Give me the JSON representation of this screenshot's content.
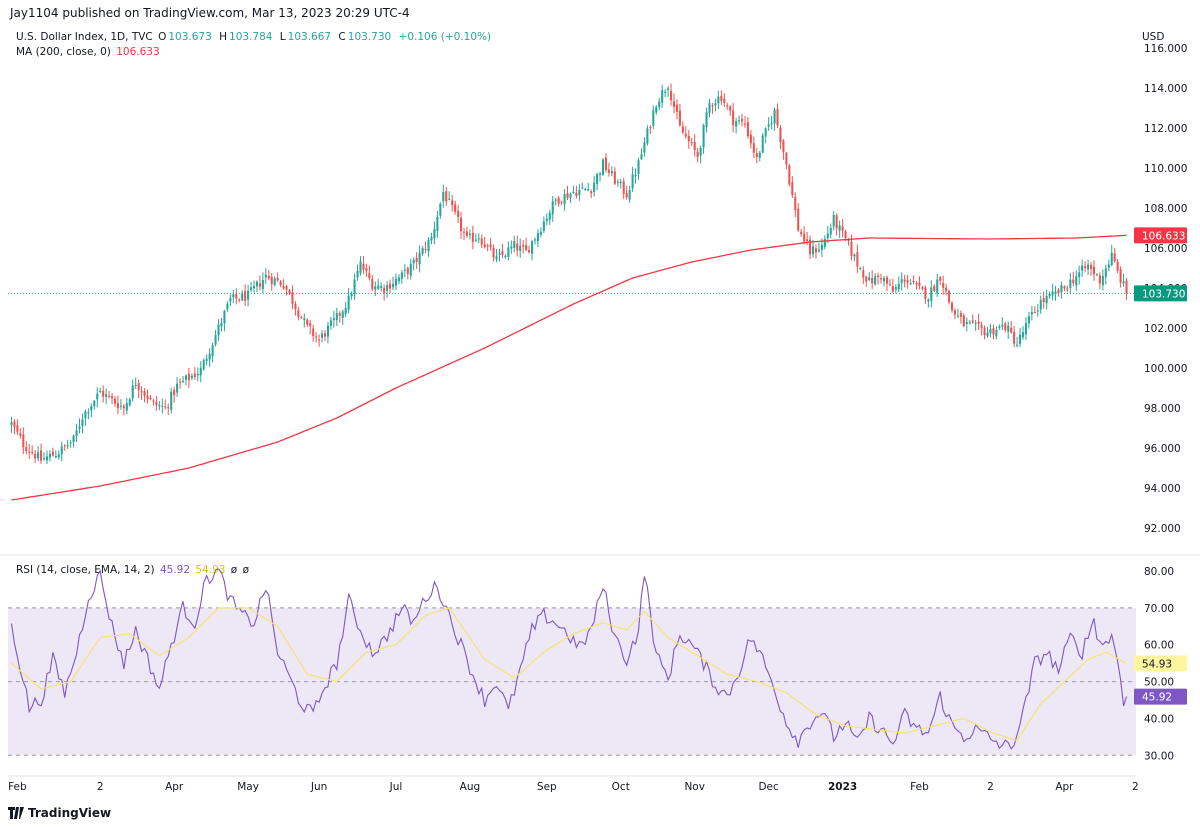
{
  "publisher": "Jay1104 published on TradingView.com, Mar 13, 2023 20:29 UTC-4",
  "legend": {
    "symbol": "U.S. Dollar Index, 1D, TVC",
    "o_label": "O",
    "o_value": "103.673",
    "h_label": "H",
    "h_value": "103.784",
    "l_label": "L",
    "l_value": "103.667",
    "c_label": "C",
    "c_value": "103.730",
    "change": "+0.106 (+0.10%)",
    "ma_label": "MA (200, close, 0)",
    "ma_value": "106.633",
    "rsi_label": "RSI (14, close, EMA, 14, 2)",
    "rsi_value": "45.92",
    "rsi_ma_value": "54.93",
    "rsi_extra1": "ø",
    "rsi_extra2": "ø"
  },
  "footer": {
    "brand": "TradingView"
  },
  "colors": {
    "up": "#26a69a",
    "down": "#ef5350",
    "ma": "#f23645",
    "rsi": "#7e57c2",
    "rsi_ma": "#f7e36a",
    "rsi_band": "#ede7f6"
  },
  "chart_data": [
    {
      "type": "candlestick",
      "title": "U.S. Dollar Index, 1D, TVC",
      "currency": "USD",
      "ylim": [
        91,
        116.6
      ],
      "y_ticks": [
        "116.000",
        "114.000",
        "112.000",
        "110.000",
        "108.000",
        "106.000",
        "104.000",
        "102.000",
        "100.000",
        "98.000",
        "96.000",
        "94.000",
        "92.000"
      ],
      "price_anchors": [
        [
          0,
          97.2
        ],
        [
          4,
          96.2
        ],
        [
          10,
          95.4
        ],
        [
          16,
          95.8
        ],
        [
          21,
          96.4
        ],
        [
          24,
          97.6
        ],
        [
          30,
          98.8
        ],
        [
          34,
          98.4
        ],
        [
          38,
          98.0
        ],
        [
          42,
          99.3
        ],
        [
          48,
          98.2
        ],
        [
          52,
          98.0
        ],
        [
          56,
          99.1
        ],
        [
          64,
          99.9
        ],
        [
          70,
          102.0
        ],
        [
          74,
          103.4
        ],
        [
          80,
          103.6
        ],
        [
          86,
          104.6
        ],
        [
          92,
          104.2
        ],
        [
          96,
          103.1
        ],
        [
          100,
          102.0
        ],
        [
          104,
          101.4
        ],
        [
          110,
          102.5
        ],
        [
          114,
          103.4
        ],
        [
          118,
          105.2
        ],
        [
          122,
          104.2
        ],
        [
          126,
          104.0
        ],
        [
          132,
          104.6
        ],
        [
          136,
          105.2
        ],
        [
          142,
          106.5
        ],
        [
          146,
          108.8
        ],
        [
          150,
          107.6
        ],
        [
          154,
          106.4
        ],
        [
          158,
          106.6
        ],
        [
          164,
          105.4
        ],
        [
          170,
          106.1
        ],
        [
          174,
          105.8
        ],
        [
          178,
          106.8
        ],
        [
          184,
          108.4
        ],
        [
          190,
          108.8
        ],
        [
          196,
          109.0
        ],
        [
          200,
          110.2
        ],
        [
          204,
          109.4
        ],
        [
          208,
          108.7
        ],
        [
          212,
          110.2
        ],
        [
          218,
          113.3
        ],
        [
          222,
          114.2
        ],
        [
          226,
          112.0
        ],
        [
          232,
          110.6
        ],
        [
          236,
          113.2
        ],
        [
          240,
          113.6
        ],
        [
          244,
          112.4
        ],
        [
          248,
          112.2
        ],
        [
          252,
          110.4
        ],
        [
          254,
          111.4
        ],
        [
          258,
          112.8
        ],
        [
          262,
          110.2
        ],
        [
          266,
          107.0
        ],
        [
          270,
          105.8
        ],
        [
          274,
          106.1
        ],
        [
          278,
          107.4
        ],
        [
          282,
          106.4
        ],
        [
          286,
          105.2
        ],
        [
          290,
          104.3
        ],
        [
          294,
          104.6
        ],
        [
          298,
          103.8
        ],
        [
          302,
          104.5
        ],
        [
          306,
          104.0
        ],
        [
          310,
          103.6
        ],
        [
          314,
          104.6
        ],
        [
          318,
          102.9
        ],
        [
          322,
          102.2
        ],
        [
          326,
          102.0
        ],
        [
          330,
          101.8
        ],
        [
          336,
          102.1
        ],
        [
          340,
          101.2
        ],
        [
          344,
          102.4
        ],
        [
          348,
          103.3
        ],
        [
          352,
          103.6
        ],
        [
          356,
          104.0
        ],
        [
          360,
          104.6
        ],
        [
          364,
          105.1
        ],
        [
          368,
          104.4
        ],
        [
          372,
          105.6
        ],
        [
          374,
          104.8
        ],
        [
          377,
          103.73
        ]
      ],
      "ma200_anchors": [
        [
          0,
          93.4
        ],
        [
          30,
          94.1
        ],
        [
          60,
          95.0
        ],
        [
          90,
          96.3
        ],
        [
          110,
          97.5
        ],
        [
          130,
          99.0
        ],
        [
          160,
          101.0
        ],
        [
          190,
          103.2
        ],
        [
          210,
          104.5
        ],
        [
          230,
          105.3
        ],
        [
          250,
          105.9
        ],
        [
          270,
          106.3
        ],
        [
          290,
          106.5
        ],
        [
          330,
          106.45
        ],
        [
          360,
          106.5
        ],
        [
          377,
          106.633
        ]
      ],
      "last_price": "103.730",
      "ma_last": "106.633"
    },
    {
      "type": "line",
      "title": "RSI (14, close, EMA, 14, 2)",
      "ylim": [
        26,
        83
      ],
      "y_ticks": [
        "80.00",
        "70.00",
        "60.00",
        "50.00",
        "40.00",
        "30.00"
      ],
      "band": [
        30,
        70
      ],
      "midline": 50,
      "series": [
        {
          "name": "RSI",
          "anchors": [
            [
              0,
              66
            ],
            [
              3,
              54
            ],
            [
              6,
              43
            ],
            [
              10,
              45
            ],
            [
              14,
              56
            ],
            [
              18,
              47
            ],
            [
              22,
              58
            ],
            [
              26,
              73
            ],
            [
              30,
              79
            ],
            [
              34,
              65
            ],
            [
              38,
              55
            ],
            [
              42,
              64
            ],
            [
              46,
              56
            ],
            [
              50,
              48
            ],
            [
              54,
              60
            ],
            [
              58,
              70
            ],
            [
              62,
              66
            ],
            [
              66,
              78
            ],
            [
              70,
              80
            ],
            [
              74,
              72
            ],
            [
              78,
              68
            ],
            [
              82,
              66
            ],
            [
              86,
              76
            ],
            [
              90,
              58
            ],
            [
              94,
              51
            ],
            [
              98,
              44
            ],
            [
              102,
              41
            ],
            [
              106,
              49
            ],
            [
              110,
              55
            ],
            [
              114,
              72
            ],
            [
              118,
              64
            ],
            [
              122,
              58
            ],
            [
              126,
              61
            ],
            [
              132,
              70
            ],
            [
              136,
              66
            ],
            [
              140,
              73
            ],
            [
              144,
              76
            ],
            [
              148,
              68
            ],
            [
              152,
              60
            ],
            [
              156,
              52
            ],
            [
              160,
              45
            ],
            [
              164,
              50
            ],
            [
              168,
              42
            ],
            [
              172,
              53
            ],
            [
              176,
              64
            ],
            [
              180,
              68
            ],
            [
              184,
              66
            ],
            [
              188,
              63
            ],
            [
              192,
              59
            ],
            [
              196,
              64
            ],
            [
              200,
              76
            ],
            [
              204,
              62
            ],
            [
              208,
              56
            ],
            [
              212,
              64
            ],
            [
              214,
              80
            ],
            [
              218,
              57
            ],
            [
              222,
              51
            ],
            [
              226,
              63
            ],
            [
              230,
              60
            ],
            [
              234,
              55
            ],
            [
              238,
              49
            ],
            [
              242,
              46
            ],
            [
              246,
              53
            ],
            [
              250,
              62
            ],
            [
              254,
              56
            ],
            [
              258,
              48
            ],
            [
              262,
              39
            ],
            [
              266,
              34
            ],
            [
              270,
              39
            ],
            [
              274,
              42
            ],
            [
              278,
              35
            ],
            [
              282,
              39
            ],
            [
              286,
              33
            ],
            [
              290,
              40
            ],
            [
              294,
              37
            ],
            [
              298,
              33
            ],
            [
              302,
              41
            ],
            [
              306,
              37
            ],
            [
              310,
              36
            ],
            [
              314,
              46
            ],
            [
              318,
              38
            ],
            [
              322,
              35
            ],
            [
              326,
              37
            ],
            [
              330,
              35
            ],
            [
              334,
              33
            ],
            [
              338,
              32
            ],
            [
              342,
              41
            ],
            [
              346,
              55
            ],
            [
              350,
              58
            ],
            [
              354,
              53
            ],
            [
              358,
              62
            ],
            [
              362,
              58
            ],
            [
              366,
              67
            ],
            [
              368,
              60
            ],
            [
              372,
              62
            ],
            [
              374,
              56
            ],
            [
              376,
              45
            ],
            [
              377,
              45.92
            ]
          ]
        },
        {
          "name": "RSI MA",
          "anchors": [
            [
              0,
              55
            ],
            [
              10,
              48
            ],
            [
              20,
              50
            ],
            [
              30,
              62
            ],
            [
              40,
              63
            ],
            [
              50,
              57
            ],
            [
              60,
              62
            ],
            [
              70,
              70
            ],
            [
              80,
              70
            ],
            [
              90,
              65
            ],
            [
              100,
              52
            ],
            [
              110,
              50
            ],
            [
              120,
              58
            ],
            [
              130,
              60
            ],
            [
              140,
              68
            ],
            [
              148,
              70
            ],
            [
              160,
              56
            ],
            [
              170,
              51
            ],
            [
              180,
              58
            ],
            [
              190,
              63
            ],
            [
              200,
              66
            ],
            [
              208,
              64
            ],
            [
              214,
              69
            ],
            [
              222,
              62
            ],
            [
              232,
              57
            ],
            [
              242,
              52
            ],
            [
              252,
              50
            ],
            [
              262,
              47
            ],
            [
              272,
              41
            ],
            [
              282,
              38
            ],
            [
              292,
              37
            ],
            [
              302,
              36
            ],
            [
              312,
              38
            ],
            [
              322,
              40
            ],
            [
              332,
              36
            ],
            [
              340,
              34
            ],
            [
              348,
              44
            ],
            [
              356,
              50
            ],
            [
              364,
              56
            ],
            [
              370,
              58
            ],
            [
              377,
              54.93
            ]
          ]
        }
      ],
      "last_values": [
        "45.92",
        "54.93"
      ]
    }
  ],
  "x_axis": {
    "labels": [
      {
        "text": "Feb",
        "idx": 2
      },
      {
        "text": "2",
        "idx": 30
      },
      {
        "text": "Apr",
        "idx": 55
      },
      {
        "text": "May",
        "idx": 80
      },
      {
        "text": "Jun",
        "idx": 104
      },
      {
        "text": "Jul",
        "idx": 130
      },
      {
        "text": "Aug",
        "idx": 155
      },
      {
        "text": "Sep",
        "idx": 181
      },
      {
        "text": "Oct",
        "idx": 206
      },
      {
        "text": "Nov",
        "idx": 231
      },
      {
        "text": "Dec",
        "idx": 256
      },
      {
        "text": "2023",
        "idx": 281,
        "bold": true
      },
      {
        "text": "Feb",
        "idx": 307
      },
      {
        "text": "2",
        "idx": 331
      },
      {
        "text": "Apr",
        "idx": 356
      },
      {
        "text": "2",
        "idx": 380
      }
    ]
  }
}
